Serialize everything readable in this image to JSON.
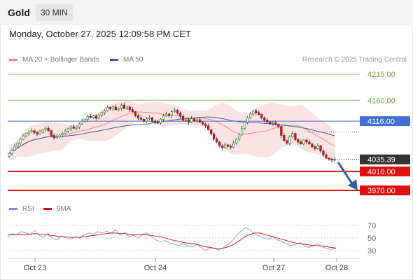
{
  "header": {
    "title": "Gold",
    "interval": "30 MIN"
  },
  "datetime": "Monday, October 27, 2025 12:09:58 PM CET",
  "legend": {
    "items": [
      {
        "label": "MA 20 + Bollinger Bands",
        "color": "#f08a8a"
      },
      {
        "label": "MA 50",
        "color": "#3d5f9e"
      }
    ],
    "credit": "Research © 2025 Trading Central"
  },
  "rsi_legend": {
    "items": [
      {
        "label": "RSI",
        "color": "#6f8fd8"
      },
      {
        "label": "9MA",
        "color": "#e01010"
      }
    ]
  },
  "chart_data": [
    {
      "type": "candlestick",
      "title": "Gold",
      "x_tick_labels": [
        "Oct 23",
        "Oct 24",
        "Oct 27",
        "Oct 28"
      ],
      "levels": [
        {
          "label": "4215.00",
          "value": 4215,
          "color": "#8cc65f",
          "kind": "resistance"
        },
        {
          "label": "4160.00",
          "value": 4160,
          "color": "#8cc65f",
          "kind": "resistance"
        },
        {
          "label": "4116.00",
          "value": 4116,
          "color": "#3d6fd6",
          "kind": "pivot"
        },
        {
          "label": "4035.39",
          "value": 4035.39,
          "color": "#333333",
          "kind": "last-price"
        },
        {
          "label": "4010.00",
          "value": 4010,
          "color": "#e01010",
          "kind": "support"
        },
        {
          "label": "3970.00",
          "value": 3970,
          "color": "#e01010",
          "kind": "support"
        }
      ],
      "close_series": [
        4048,
        4055,
        4063,
        4070,
        4078,
        4085,
        4090,
        4093,
        4096,
        4092,
        4089,
        4093,
        4098,
        4101,
        4096,
        4086,
        4081,
        4083,
        4087,
        4090,
        4095,
        4100,
        4104,
        4101,
        4104,
        4110,
        4116,
        4120,
        4126,
        4124,
        4127,
        4122,
        4128,
        4134,
        4138,
        4145,
        4142,
        4146,
        4140,
        4143,
        4150,
        4143,
        4146,
        4140,
        4136,
        4128,
        4123,
        4120,
        4116,
        4121,
        4123,
        4116,
        4114,
        4112,
        4120,
        4127,
        4131,
        4128,
        4136,
        4139,
        4133,
        4126,
        4118,
        4119,
        4114,
        4121,
        4117,
        4119,
        4114,
        4110,
        4106,
        4098,
        4089,
        4078,
        4072,
        4064,
        4060,
        4066,
        4063,
        4061,
        4070,
        4078,
        4087,
        4101,
        4114,
        4123,
        4131,
        4138,
        4134,
        4130,
        4123,
        4118,
        4114,
        4111,
        4113,
        4109,
        4104,
        4086,
        4075,
        4070,
        4083,
        4090,
        4077,
        4072,
        4068,
        4076,
        4072,
        4068,
        4062,
        4058,
        4064,
        4053,
        4045,
        4038,
        4036,
        4034,
        4035
      ],
      "ma50_direction": "declining",
      "projection": {
        "from": 4035.39,
        "to": 3970,
        "direction": "down"
      },
      "y_range": [
        3965,
        4225
      ]
    },
    {
      "type": "line",
      "title": "RSI",
      "series": [
        {
          "name": "RSI",
          "values": [
            52,
            57,
            55,
            60,
            58,
            56,
            62,
            54,
            51,
            57,
            49,
            47,
            53,
            50,
            48,
            52,
            50,
            55,
            58,
            56,
            60,
            58,
            61,
            57,
            63,
            55,
            59,
            52,
            54,
            50,
            56,
            58,
            52,
            47,
            44,
            46,
            42,
            40,
            38,
            41,
            37,
            36,
            40,
            35,
            30,
            34,
            33,
            31,
            35,
            40,
            46,
            55,
            62,
            67,
            62,
            57,
            52,
            50,
            48,
            52,
            47,
            44,
            41,
            38,
            40,
            43,
            37,
            35,
            38,
            41,
            36,
            33,
            32,
            34
          ]
        },
        {
          "name": "9MA",
          "values": [
            55,
            55,
            55,
            55,
            56,
            56,
            57,
            56,
            56,
            55,
            54,
            53,
            52,
            52,
            51,
            51,
            51,
            52,
            53,
            54,
            55,
            56,
            57,
            58,
            58,
            57,
            57,
            56,
            55,
            55,
            55,
            55,
            54,
            53,
            52,
            50,
            48,
            46,
            45,
            43,
            42,
            41,
            40,
            38,
            36,
            35,
            34,
            33,
            34,
            36,
            39,
            43,
            48,
            53,
            56,
            58,
            58,
            56,
            54,
            52,
            50,
            48,
            46,
            44,
            42,
            41,
            40,
            39,
            38,
            38,
            37,
            36,
            35,
            34
          ]
        }
      ],
      "y_ticks": [
        "70",
        "50",
        "30"
      ],
      "y_range": [
        22,
        78
      ]
    }
  ]
}
